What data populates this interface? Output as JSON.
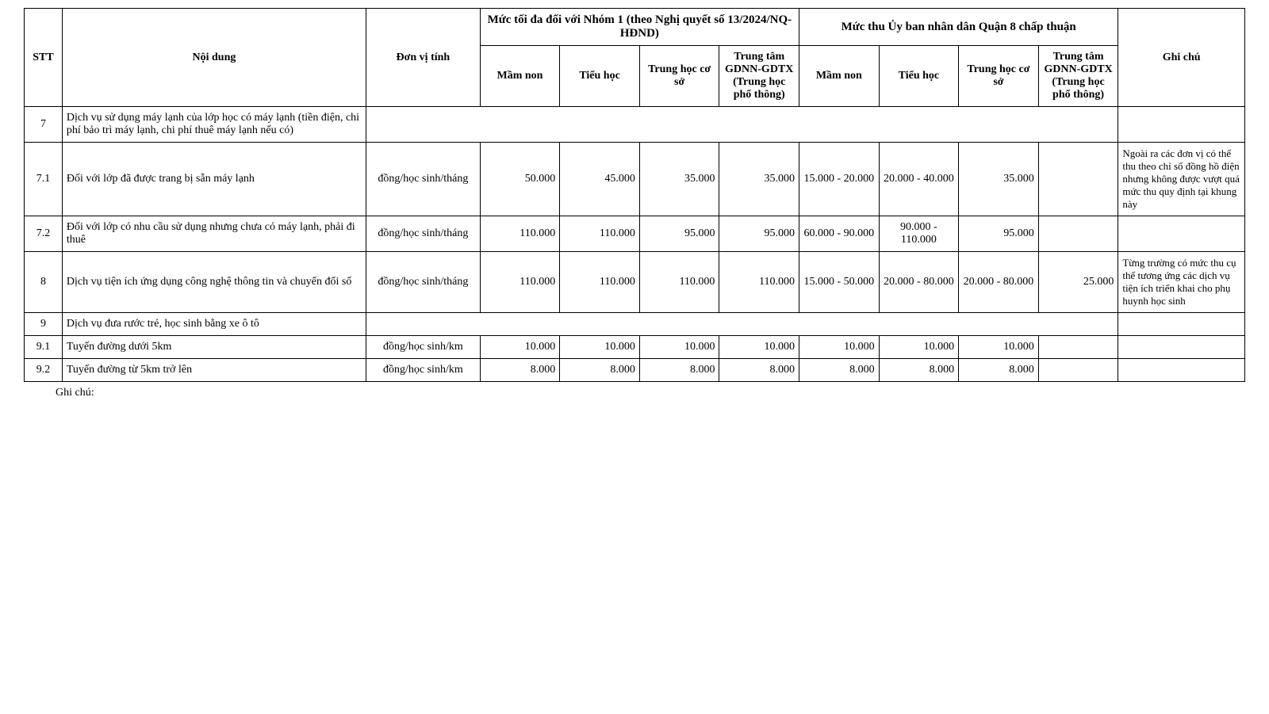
{
  "headers": {
    "stt": "STT",
    "noidung": "Nội dung",
    "donvi": "Đơn vị tính",
    "group1": "Mức tối đa đối với Nhóm 1 (theo Nghị quyết số 13/2024/NQ-HĐND)",
    "group2": "Mức thu Ủy ban nhân dân Quận 8 chấp thuận",
    "mamnon": "Mầm non",
    "tieuhoc": "Tiểu học",
    "thcs": "Trung học cơ sở",
    "gdnn": "Trung tâm GDNN-GDTX (Trung học phổ thông)",
    "ghichu": "Ghi chú"
  },
  "rows": [
    {
      "stt": "7",
      "noidung": "Dịch vụ sử dụng máy lạnh của lớp học có máy lạnh (tiền điện, chi phí bảo trì máy lạnh, chi phí thuê máy lạnh nếu có)",
      "donvi": "",
      "g1_mamnon": "",
      "g1_tieuhoc": "",
      "g1_thcs": "",
      "g1_gdnn": "",
      "g2_mamnon": "",
      "g2_tieuhoc": "",
      "g2_thcs": "",
      "g2_gdnn": "",
      "ghichu": "",
      "merged_data": true
    },
    {
      "stt": "7.1",
      "noidung": "Đối với lớp đã được trang bị sẵn máy lạnh",
      "donvi": "đồng/học sinh/tháng",
      "g1_mamnon": "50.000",
      "g1_tieuhoc": "45.000",
      "g1_thcs": "35.000",
      "g1_gdnn": "35.000",
      "g2_mamnon": "15.000 - 20.000",
      "g2_tieuhoc": "20.000 - 40.000",
      "g2_thcs": "35.000",
      "g2_gdnn": "",
      "ghichu": "Ngoài ra các đơn vị có thể thu theo chỉ số đồng hồ điện nhưng không được vượt quá mức thu quy định tại khung này"
    },
    {
      "stt": "7.2",
      "noidung": "Đối với lớp có nhu cầu sử dụng nhưng chưa có máy lạnh, phải đi thuê",
      "donvi": "đồng/học sinh/tháng",
      "g1_mamnon": "110.000",
      "g1_tieuhoc": "110.000",
      "g1_thcs": "95.000",
      "g1_gdnn": "95.000",
      "g2_mamnon": "60.000 - 90.000",
      "g2_tieuhoc": "90.000 - 110.000",
      "g2_thcs": "95.000",
      "g2_gdnn": "",
      "ghichu": ""
    },
    {
      "stt": "8",
      "noidung": "Dịch vụ tiện ích ứng dụng công nghệ thông tin và chuyển đổi số",
      "donvi": "đồng/học sinh/tháng",
      "g1_mamnon": "110.000",
      "g1_tieuhoc": "110.000",
      "g1_thcs": "110.000",
      "g1_gdnn": "110.000",
      "g2_mamnon": "15.000 - 50.000",
      "g2_tieuhoc": "20.000 - 80.000",
      "g2_thcs": "20.000 - 80.000",
      "g2_gdnn": "25.000",
      "ghichu": "Từng trường có mức thu cụ thể tương ứng các dịch vụ tiện ích triển khai cho phụ huynh học sinh"
    },
    {
      "stt": "9",
      "noidung": "Dịch vụ đưa rước trẻ, học sinh bằng xe ô tô",
      "donvi": "",
      "g1_mamnon": "",
      "g1_tieuhoc": "",
      "g1_thcs": "",
      "g1_gdnn": "",
      "g2_mamnon": "",
      "g2_tieuhoc": "",
      "g2_thcs": "",
      "g2_gdnn": "",
      "ghichu": "",
      "merged_data": true
    },
    {
      "stt": "9.1",
      "noidung": "Tuyến đường dưới 5km",
      "donvi": "đồng/học sinh/km",
      "g1_mamnon": "10.000",
      "g1_tieuhoc": "10.000",
      "g1_thcs": "10.000",
      "g1_gdnn": "10.000",
      "g2_mamnon": "10.000",
      "g2_tieuhoc": "10.000",
      "g2_thcs": "10.000",
      "g2_gdnn": "",
      "ghichu": ""
    },
    {
      "stt": "9.2",
      "noidung": "Tuyến đường từ 5km trở lên",
      "donvi": "đồng/học sinh/km",
      "g1_mamnon": "8.000",
      "g1_tieuhoc": "8.000",
      "g1_thcs": "8.000",
      "g1_gdnn": "8.000",
      "g2_mamnon": "8.000",
      "g2_tieuhoc": "8.000",
      "g2_thcs": "8.000",
      "g2_gdnn": "",
      "ghichu": ""
    }
  ],
  "footnote": "Ghi chú:",
  "style": {
    "font_family": "Times New Roman",
    "font_size_body": 14,
    "border_color": "#000000",
    "background_color": "#ffffff",
    "text_color": "#000000"
  }
}
